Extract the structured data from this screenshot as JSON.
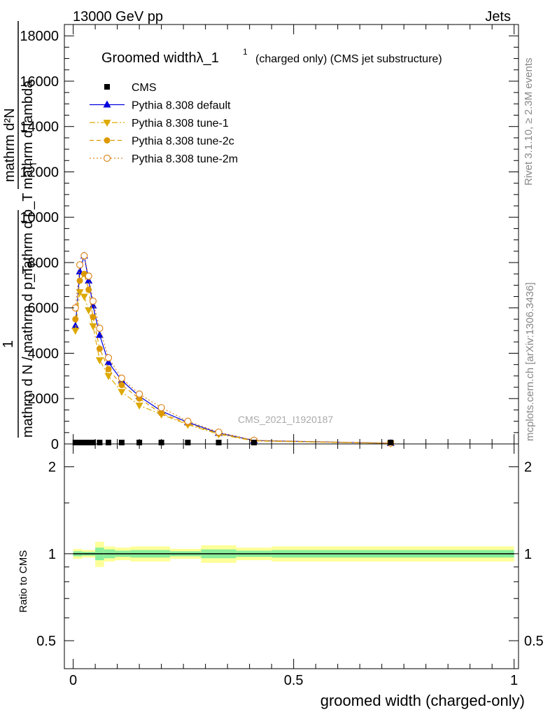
{
  "header": {
    "energy_label": "13000 GeV pp",
    "process_label": "Jets",
    "side_rivet": "Rivet 3.1.10, ≥ 2.3M events",
    "side_mcplots": "mcplots.cern.ch [arXiv:1306.3436]",
    "watermark": "CMS_2021_I1920187"
  },
  "main_plot": {
    "title_main": "Groomed widthλ_1",
    "title_sup": "1",
    "title_extra": "(charged only) (CMS jet substructure)",
    "ylabel_top": "mathrm d²N",
    "ylabel_top_den": "mathrm d p_T mathrm d lambda",
    "ylabel_one": "1",
    "ylabel_bottom": "mathrm d N / mathrm d p_T",
    "ylabel_sub_T1": "T",
    "ylabel_sub_T2": "T"
  },
  "ratio_plot": {
    "ylabel": "Ratio to CMS"
  },
  "legend": {
    "entries": [
      {
        "label": "CMS",
        "color": "#000000",
        "marker": "square-filled",
        "line": "none"
      },
      {
        "label": "Pythia 8.308 default",
        "color": "#0000dd",
        "marker": "triangle-up",
        "line": "solid"
      },
      {
        "label": "Pythia 8.308 tune-1",
        "color": "#ddaa00",
        "marker": "triangle-down",
        "line": "dashdot"
      },
      {
        "label": "Pythia 8.308 tune-2c",
        "color": "#dd9900",
        "marker": "circle-filled",
        "line": "dashed"
      },
      {
        "label": "Pythia 8.308 tune-2m",
        "color": "#dd8822",
        "marker": "circle-open",
        "line": "dotted"
      }
    ]
  },
  "chart_data": {
    "type": "line",
    "xlabel": "groomed width (charged-only)",
    "xlim": [
      -0.02,
      1.01
    ],
    "ylim_main": [
      0,
      18500
    ],
    "ylim_ratio": [
      0.4,
      2.4
    ],
    "y_ticks_main": [
      "0",
      "2000",
      "4000",
      "6000",
      "8000",
      "10000",
      "12000",
      "14000",
      "16000",
      "18000"
    ],
    "y_ticks_ratio": [
      "0.5",
      "1",
      "2"
    ],
    "x_ticks": [
      "0",
      "0.5",
      "1"
    ],
    "cms_x": [
      0.005,
      0.015,
      0.025,
      0.035,
      0.045,
      0.06,
      0.08,
      0.11,
      0.15,
      0.2,
      0.26,
      0.33,
      0.41,
      0.72
    ],
    "series": [
      {
        "name": "Pythia 8.308 default",
        "color": "#0000dd",
        "x": [
          0.005,
          0.015,
          0.025,
          0.035,
          0.045,
          0.06,
          0.08,
          0.11,
          0.15,
          0.2,
          0.26,
          0.33,
          0.41,
          0.72
        ],
        "y": [
          5200,
          7600,
          8300,
          7200,
          6100,
          4800,
          3600,
          2800,
          2100,
          1450,
          950,
          480,
          150,
          30
        ]
      },
      {
        "name": "Pythia 8.308 tune-1",
        "color": "#ddaa00",
        "x": [
          0.005,
          0.015,
          0.025,
          0.035,
          0.045,
          0.06,
          0.08,
          0.11,
          0.15,
          0.2,
          0.26,
          0.33,
          0.41,
          0.72
        ],
        "y": [
          5000,
          6700,
          6500,
          5900,
          5200,
          3700,
          3000,
          2300,
          1700,
          1300,
          850,
          430,
          130,
          25
        ]
      },
      {
        "name": "Pythia 8.308 tune-2c",
        "color": "#dd9900",
        "x": [
          0.005,
          0.015,
          0.025,
          0.035,
          0.045,
          0.06,
          0.08,
          0.11,
          0.15,
          0.2,
          0.26,
          0.33,
          0.41,
          0.72
        ],
        "y": [
          5500,
          7200,
          7500,
          6800,
          5600,
          4200,
          3300,
          2600,
          2000,
          1350,
          900,
          460,
          145,
          28
        ]
      },
      {
        "name": "Pythia 8.308 tune-2m",
        "color": "#dd8822",
        "x": [
          0.005,
          0.015,
          0.025,
          0.035,
          0.045,
          0.06,
          0.08,
          0.11,
          0.15,
          0.2,
          0.26,
          0.33,
          0.41,
          0.72
        ],
        "y": [
          6000,
          7900,
          8300,
          7400,
          6300,
          5100,
          3800,
          2900,
          2200,
          1600,
          1000,
          520,
          160,
          32
        ]
      }
    ],
    "ratio_bands": [
      {
        "x0": 0.0,
        "x1": 0.02,
        "green": [
          0.98,
          1.02
        ],
        "yellow": [
          0.96,
          1.04
        ]
      },
      {
        "x0": 0.02,
        "x1": 0.05,
        "green": [
          0.985,
          1.015
        ],
        "yellow": [
          0.97,
          1.03
        ]
      },
      {
        "x0": 0.05,
        "x1": 0.07,
        "green": [
          0.95,
          1.05
        ],
        "yellow": [
          0.9,
          1.1
        ]
      },
      {
        "x0": 0.07,
        "x1": 0.095,
        "green": [
          0.965,
          1.035
        ],
        "yellow": [
          0.94,
          1.06
        ]
      },
      {
        "x0": 0.095,
        "x1": 0.13,
        "green": [
          0.975,
          1.025
        ],
        "yellow": [
          0.95,
          1.05
        ]
      },
      {
        "x0": 0.13,
        "x1": 0.22,
        "green": [
          0.97,
          1.03
        ],
        "yellow": [
          0.94,
          1.06
        ]
      },
      {
        "x0": 0.22,
        "x1": 0.29,
        "green": [
          0.98,
          1.02
        ],
        "yellow": [
          0.96,
          1.04
        ]
      },
      {
        "x0": 0.29,
        "x1": 0.37,
        "green": [
          0.965,
          1.035
        ],
        "yellow": [
          0.93,
          1.07
        ]
      },
      {
        "x0": 0.37,
        "x1": 0.45,
        "green": [
          0.975,
          1.025
        ],
        "yellow": [
          0.95,
          1.05
        ]
      },
      {
        "x0": 0.45,
        "x1": 1.0,
        "green": [
          0.97,
          1.03
        ],
        "yellow": [
          0.94,
          1.06
        ]
      }
    ]
  }
}
